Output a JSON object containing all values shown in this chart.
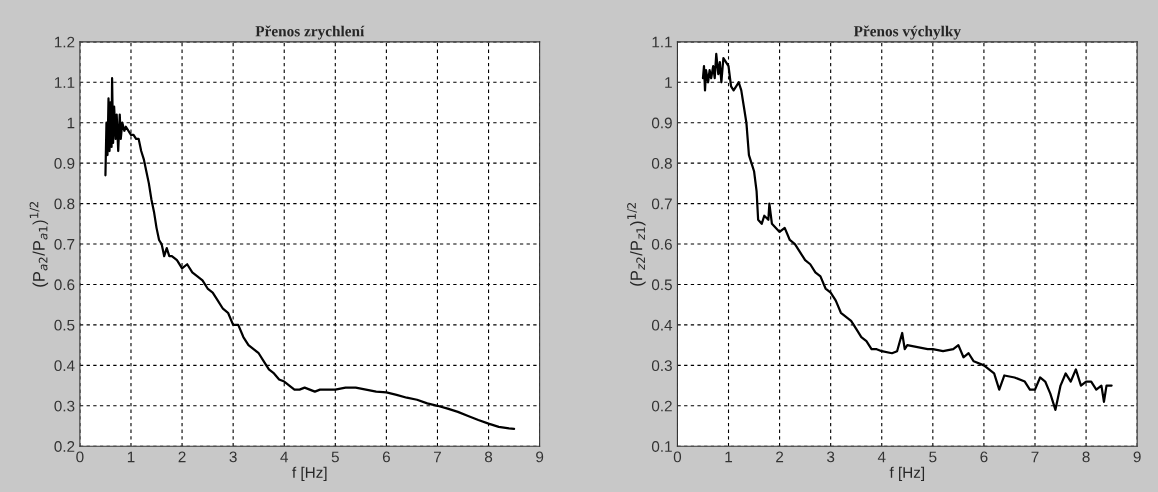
{
  "chart_data": [
    {
      "type": "line",
      "title": "Přenos zrychlení",
      "xlabel": "f [Hz]",
      "ylabel": "(P$_{a2}$/P$_{a1}$)$^{1/2}$",
      "xlim": [
        0,
        9
      ],
      "xticks": [
        0,
        1,
        2,
        3,
        4,
        5,
        6,
        7,
        8,
        9
      ],
      "ylim": [
        0.2,
        1.2
      ],
      "yticks": [
        0.2,
        0.3,
        0.4,
        0.5,
        0.6,
        0.7,
        0.8,
        0.9,
        1,
        1.1,
        1.2
      ],
      "grid": true,
      "series": [
        {
          "color": "#000000",
          "x": [
            0.5,
            0.52,
            0.54,
            0.56,
            0.58,
            0.6,
            0.62,
            0.63,
            0.65,
            0.67,
            0.7,
            0.72,
            0.75,
            0.78,
            0.8,
            0.83,
            0.87,
            0.9,
            1.0,
            1.05,
            1.1,
            1.15,
            1.2,
            1.25,
            1.3,
            1.35,
            1.4,
            1.45,
            1.5,
            1.55,
            1.6,
            1.65,
            1.7,
            1.75,
            1.8,
            1.9,
            2.0,
            2.1,
            2.2,
            2.3,
            2.4,
            2.5,
            2.6,
            2.7,
            2.8,
            2.9,
            3.0,
            3.1,
            3.2,
            3.3,
            3.4,
            3.5,
            3.6,
            3.7,
            3.8,
            3.9,
            4.0,
            4.1,
            4.2,
            4.3,
            4.4,
            4.5,
            4.6,
            4.7,
            4.8,
            4.9,
            5.0,
            5.2,
            5.4,
            5.6,
            5.8,
            6.0,
            6.2,
            6.4,
            6.6,
            6.8,
            7.0,
            7.2,
            7.4,
            7.6,
            7.8,
            8.0,
            8.2,
            8.4,
            8.5
          ],
          "values": [
            0.87,
            1.0,
            0.92,
            1.06,
            0.93,
            1.05,
            0.94,
            1.11,
            0.95,
            1.04,
            0.96,
            1.02,
            0.93,
            1.02,
            0.96,
            1.0,
            0.98,
            0.99,
            0.97,
            0.97,
            0.96,
            0.96,
            0.93,
            0.91,
            0.88,
            0.85,
            0.81,
            0.78,
            0.74,
            0.71,
            0.7,
            0.67,
            0.69,
            0.67,
            0.67,
            0.66,
            0.64,
            0.65,
            0.63,
            0.62,
            0.61,
            0.59,
            0.58,
            0.56,
            0.54,
            0.53,
            0.5,
            0.5,
            0.47,
            0.45,
            0.44,
            0.43,
            0.41,
            0.39,
            0.38,
            0.365,
            0.36,
            0.35,
            0.34,
            0.34,
            0.345,
            0.34,
            0.335,
            0.34,
            0.34,
            0.34,
            0.34,
            0.345,
            0.345,
            0.34,
            0.335,
            0.333,
            0.327,
            0.32,
            0.315,
            0.306,
            0.3,
            0.293,
            0.285,
            0.275,
            0.265,
            0.256,
            0.248,
            0.244,
            0.243
          ]
        }
      ]
    },
    {
      "type": "line",
      "title": "Přenos výchylky",
      "xlabel": "f [Hz]",
      "ylabel": "(P$_{z2}$/P$_{z1}$)$^{1/2}$",
      "xlim": [
        0,
        9
      ],
      "xticks": [
        0,
        1,
        2,
        3,
        4,
        5,
        6,
        7,
        8,
        9
      ],
      "ylim": [
        0.1,
        1.1
      ],
      "yticks": [
        0.1,
        0.2,
        0.3,
        0.4,
        0.5,
        0.6,
        0.7,
        0.8,
        0.9,
        1,
        1.1
      ],
      "grid": true,
      "series": [
        {
          "color": "#000000",
          "x": [
            0.5,
            0.52,
            0.54,
            0.56,
            0.6,
            0.63,
            0.66,
            0.7,
            0.73,
            0.76,
            0.8,
            0.83,
            0.86,
            0.9,
            0.95,
            1.0,
            1.05,
            1.1,
            1.15,
            1.2,
            1.25,
            1.3,
            1.35,
            1.4,
            1.45,
            1.5,
            1.55,
            1.58,
            1.65,
            1.7,
            1.78,
            1.8,
            1.85,
            2.0,
            2.1,
            2.2,
            2.3,
            2.4,
            2.5,
            2.6,
            2.7,
            2.8,
            2.9,
            3.0,
            3.1,
            3.2,
            3.3,
            3.4,
            3.5,
            3.6,
            3.7,
            3.8,
            3.9,
            4.0,
            4.2,
            4.3,
            4.4,
            4.45,
            4.5,
            4.7,
            4.9,
            5.0,
            5.2,
            5.4,
            5.5,
            5.6,
            5.7,
            5.8,
            6.0,
            6.1,
            6.2,
            6.3,
            6.4,
            6.6,
            6.8,
            6.9,
            7.0,
            7.1,
            7.2,
            7.3,
            7.4,
            7.5,
            7.6,
            7.7,
            7.8,
            7.9,
            8.0,
            8.1,
            8.2,
            8.3,
            8.35,
            8.4,
            8.5
          ],
          "values": [
            1.01,
            1.04,
            0.98,
            1.03,
            1.0,
            1.03,
            1.01,
            1.04,
            1.01,
            1.07,
            1.02,
            1.05,
            1.0,
            1.06,
            1.05,
            1.04,
            0.99,
            0.98,
            0.99,
            1.0,
            0.98,
            0.94,
            0.9,
            0.82,
            0.8,
            0.78,
            0.73,
            0.66,
            0.65,
            0.67,
            0.66,
            0.7,
            0.65,
            0.63,
            0.64,
            0.61,
            0.6,
            0.58,
            0.56,
            0.55,
            0.53,
            0.52,
            0.49,
            0.48,
            0.46,
            0.43,
            0.42,
            0.41,
            0.39,
            0.37,
            0.36,
            0.34,
            0.34,
            0.335,
            0.33,
            0.335,
            0.38,
            0.34,
            0.35,
            0.345,
            0.34,
            0.34,
            0.335,
            0.34,
            0.35,
            0.32,
            0.33,
            0.31,
            0.3,
            0.29,
            0.28,
            0.24,
            0.275,
            0.27,
            0.26,
            0.24,
            0.24,
            0.27,
            0.26,
            0.23,
            0.19,
            0.25,
            0.28,
            0.26,
            0.29,
            0.25,
            0.26,
            0.26,
            0.24,
            0.25,
            0.21,
            0.25,
            0.25
          ]
        }
      ]
    }
  ]
}
